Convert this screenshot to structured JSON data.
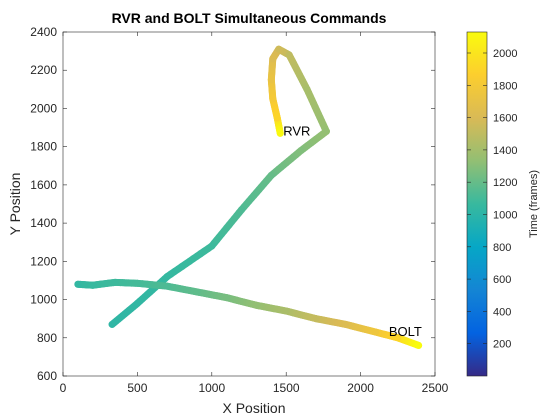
{
  "chart_data": {
    "type": "scatter",
    "title": "RVR and BOLT Simultaneous Commands",
    "xlabel": "X Position",
    "ylabel": "Y Position",
    "colorbar_label": "Time (frames)",
    "colormap": "parula",
    "xlim": [
      0,
      2500
    ],
    "ylim": [
      600,
      2400
    ],
    "clim": [
      0,
      2130
    ],
    "xticks": [
      0,
      500,
      1000,
      1500,
      2000,
      2500
    ],
    "yticks": [
      600,
      800,
      1000,
      1200,
      1400,
      1600,
      1800,
      2000,
      2200,
      2400
    ],
    "cticks": [
      200,
      400,
      600,
      800,
      1000,
      1200,
      1400,
      1600,
      1800,
      2000
    ],
    "grid": false,
    "legend": "none",
    "series": [
      {
        "name": "RVR",
        "points": [
          [
            330,
            870,
            1020
          ],
          [
            500,
            980,
            1030
          ],
          [
            700,
            1120,
            1050
          ],
          [
            1000,
            1280,
            1080
          ],
          [
            1200,
            1470,
            1130
          ],
          [
            1400,
            1650,
            1200
          ],
          [
            1600,
            1780,
            1280
          ],
          [
            1770,
            1880,
            1340
          ],
          [
            1640,
            2100,
            1410
          ],
          [
            1520,
            2280,
            1500
          ],
          [
            1450,
            2310,
            1560
          ],
          [
            1410,
            2260,
            1620
          ],
          [
            1400,
            2150,
            1720
          ],
          [
            1410,
            2050,
            1800
          ],
          [
            1440,
            1950,
            1900
          ],
          [
            1460,
            1870,
            2120
          ]
        ]
      },
      {
        "name": "BOLT",
        "points": [
          [
            100,
            1080,
            1040
          ],
          [
            200,
            1075,
            1060
          ],
          [
            350,
            1090,
            1080
          ],
          [
            500,
            1085,
            1100
          ],
          [
            700,
            1070,
            1130
          ],
          [
            900,
            1040,
            1180
          ],
          [
            1100,
            1010,
            1250
          ],
          [
            1300,
            970,
            1330
          ],
          [
            1500,
            940,
            1420
          ],
          [
            1700,
            900,
            1520
          ],
          [
            1900,
            870,
            1620
          ],
          [
            2100,
            830,
            1760
          ],
          [
            2250,
            800,
            1900
          ],
          [
            2390,
            760,
            2130
          ]
        ]
      }
    ],
    "annotations": [
      {
        "text": "RVR",
        "x": 1480,
        "y": 1880
      },
      {
        "text": "BOLT",
        "x": 2190,
        "y": 830
      }
    ]
  }
}
